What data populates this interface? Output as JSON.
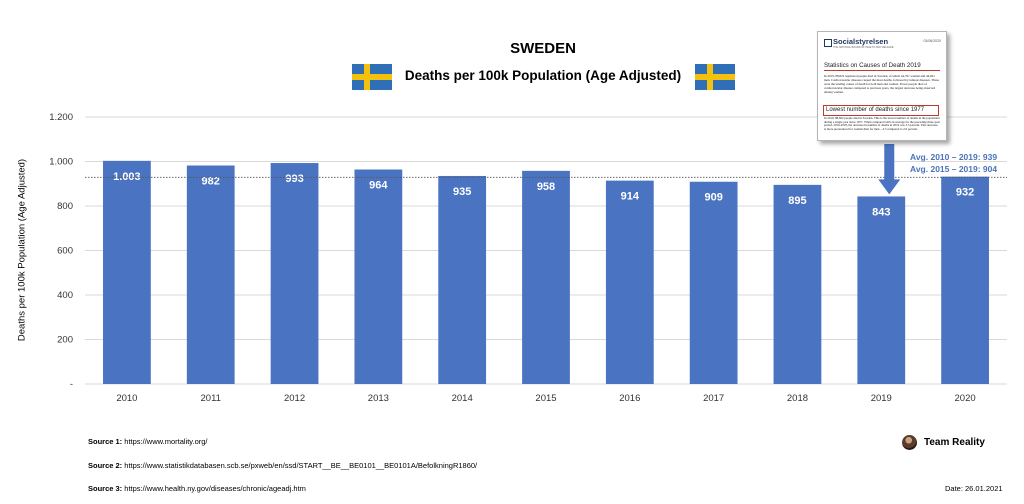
{
  "chart_data": {
    "type": "bar",
    "title": "SWEDEN",
    "subtitle": "Deaths per 100k Population (Age Adjusted)",
    "ylabel": "Deaths per 100k Population (Age Adjusted)",
    "xlabel": "",
    "categories": [
      "2010",
      "2011",
      "2012",
      "2013",
      "2014",
      "2015",
      "2016",
      "2017",
      "2018",
      "2019",
      "2020"
    ],
    "values": [
      1003,
      982,
      993,
      964,
      935,
      958,
      914,
      909,
      895,
      843,
      932
    ],
    "value_labels": [
      "1.003",
      "982",
      "993",
      "964",
      "935",
      "958",
      "914",
      "909",
      "895",
      "843",
      "932"
    ],
    "ylim": [
      0,
      1200
    ],
    "yticks": [
      {
        "value": 0,
        "label": "-"
      },
      {
        "value": 200,
        "label": "200"
      },
      {
        "value": 400,
        "label": "400"
      },
      {
        "value": 600,
        "label": "600"
      },
      {
        "value": 800,
        "label": "800"
      },
      {
        "value": 1000,
        "label": "1.000"
      },
      {
        "value": 1200,
        "label": "1.200"
      }
    ],
    "grid": true,
    "bar_color": "#4a74c2",
    "reference_line": {
      "value": 929,
      "style": "dotted"
    },
    "annotations": [
      "Avg. 2010 – 2019: 939",
      "Avg. 2015 – 2019: 904"
    ],
    "arrow_target": "2019"
  },
  "inset": {
    "brand": "Socialstyrelsen",
    "org_line": "THE NATIONAL BOARD OF HEALTH AND WELFARE",
    "date": "03/06/2020",
    "heading": "Statistics on Causes of Death 2019",
    "paragraph1": "In 2019, 88,822 registered people died in Sweden, of which 44,761 women and 44,061 men. Cardiovascular diseases caused the most deaths, followed by tumour diseases. These were the leading causes of death for both men and women. Fewer people died of cardiovascular disease compared to previous years, the largest decrease being observed among women.",
    "highlight": "Lowest number of deaths since 1977",
    "paragraph2": "In 2019, 88,822 people died in Sweden. This is the lowest number of deaths in the population during a single year since 1977. When compared with an average for the preceding three-year period, 2016-2018, the decrease in number of deaths in 2019 was 3.3 percent. This decrease is more pronounced for women than for men – 4.5 compared to 2.0 percent."
  },
  "sources": [
    {
      "label": "Source 1:",
      "text": "https://www.mortality.org/"
    },
    {
      "label": "Source 2:",
      "text": "https://www.statistikdatabasen.scb.se/pxweb/en/ssd/START__BE__BE0101__BE0101A/BefolkningR1860/"
    },
    {
      "label": "Source 3:",
      "text": "https://www.health.ny.gov/diseases/chronic/ageadj.htm"
    }
  ],
  "brand": {
    "name": "Team Reality"
  },
  "date_label": "Date: 26.01.2021",
  "colors": {
    "bar": "#4a74c2",
    "annotation": "#4a74b8",
    "flag_blue": "#2e6fb8",
    "flag_yellow": "#f4c20d"
  }
}
